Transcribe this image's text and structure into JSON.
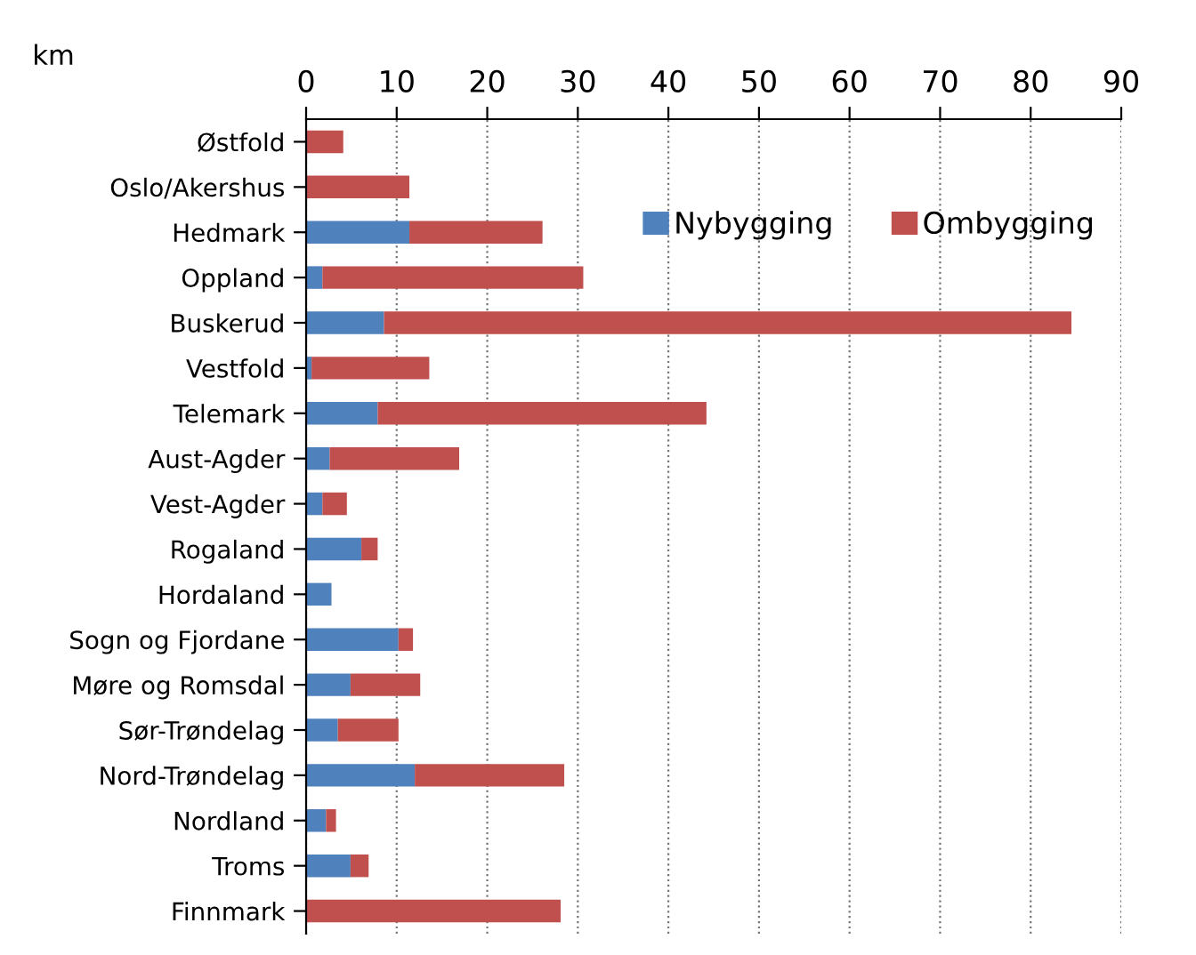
{
  "chart_data": {
    "type": "bar",
    "orientation": "horizontal",
    "stacked": true,
    "ylabel": "km",
    "categories": [
      "Østfold",
      "Oslo/Akershus",
      "Hedmark",
      "Oppland",
      "Buskerud",
      "Vestfold",
      "Telemark",
      "Aust-Agder",
      "Vest-Agder",
      "Rogaland",
      "Hordaland",
      "Sogn og Fjordane",
      "Møre og Romsdal",
      "Sør-Trøndelag",
      "Nord-Trøndelag",
      "Nordland",
      "Troms",
      "Finnmark"
    ],
    "series": [
      {
        "name": "Nybygging",
        "color": "#4f81bd",
        "values": [
          0,
          0,
          11.4,
          1.8,
          8.6,
          0.6,
          7.9,
          2.6,
          1.8,
          6.1,
          2.8,
          10.2,
          4.9,
          3.5,
          12.0,
          2.2,
          4.9,
          0
        ]
      },
      {
        "name": "Ombygging",
        "color": "#c0504d",
        "values": [
          4.1,
          11.4,
          14.7,
          28.8,
          75.9,
          13.0,
          36.3,
          14.3,
          2.7,
          1.8,
          0,
          1.6,
          7.7,
          6.7,
          16.5,
          1.1,
          2.0,
          28.1
        ]
      }
    ],
    "xlim": [
      0,
      90
    ],
    "xticks": [
      0,
      10,
      20,
      30,
      40,
      50,
      60,
      70,
      80,
      90
    ],
    "grid": "x",
    "legend": "top right"
  }
}
